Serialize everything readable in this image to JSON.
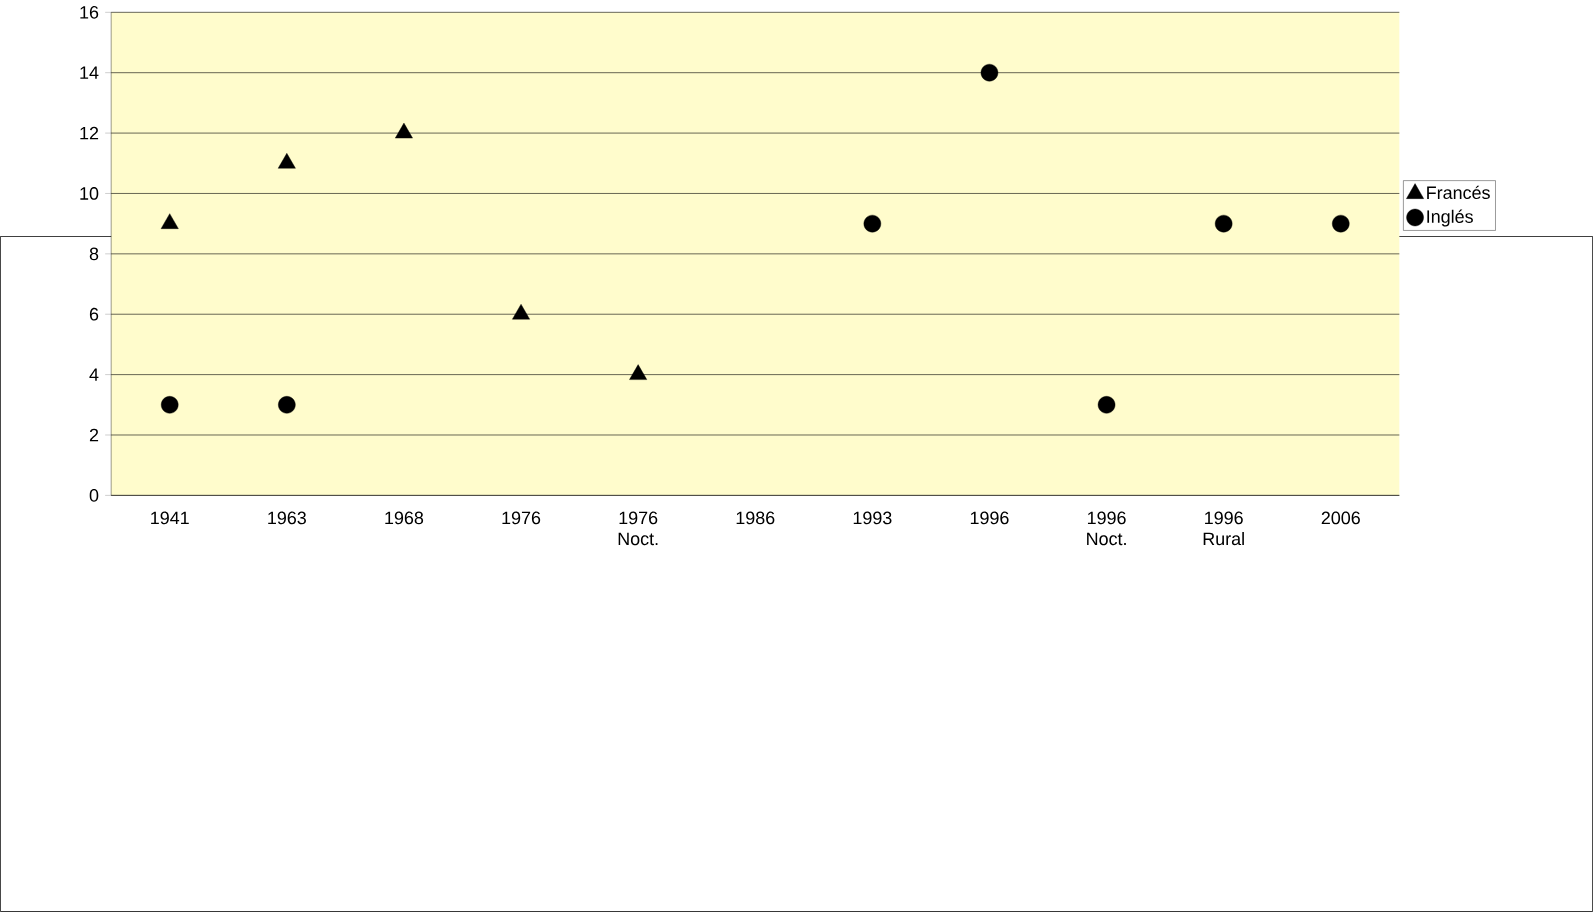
{
  "chart_data": {
    "type": "scatter",
    "categories": [
      "1941",
      "1963",
      "1968",
      "1976",
      "1976 Noct.",
      "1986",
      "1993",
      "1996",
      "1996 Noct.",
      "1996 Rural",
      "2006"
    ],
    "series": [
      {
        "name": "Francés",
        "color": "#000000",
        "marker": "triangle",
        "values": [
          9,
          11,
          12,
          6,
          4,
          null,
          null,
          null,
          null,
          null,
          null
        ]
      },
      {
        "name": "Inglés",
        "color": "#000000",
        "marker": "circle",
        "values": [
          3,
          3,
          null,
          null,
          null,
          null,
          9,
          14,
          3,
          9,
          9
        ]
      }
    ],
    "ylim": [
      0,
      16
    ],
    "yticks": [
      0,
      2,
      4,
      6,
      8,
      10,
      12,
      14,
      16
    ],
    "grid": "y",
    "legend": "right"
  }
}
